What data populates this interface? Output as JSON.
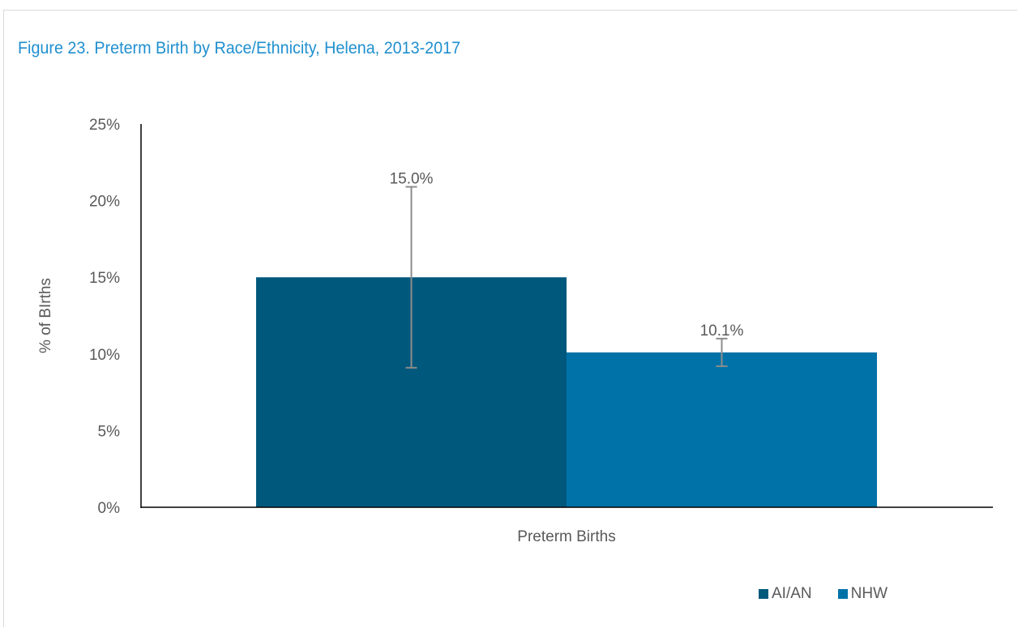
{
  "figure": {
    "title": "Figure 23. Preterm Birth by Race/Ethnicity, Helena, 2013-2017"
  },
  "colors": {
    "title": "#1f8fcf",
    "axis_text": "#595959",
    "error_bar": "#8c8c8c"
  },
  "chart_data": {
    "type": "bar",
    "title": "",
    "categories": [
      "Preterm Births"
    ],
    "xlabel": "",
    "ylabel": "% of BIrths",
    "ylim": [
      0,
      25
    ],
    "yticks": [
      0,
      5,
      10,
      15,
      20,
      25
    ],
    "ytick_labels": [
      "0%",
      "5%",
      "10%",
      "15%",
      "20%",
      "25%"
    ],
    "grid": false,
    "legend_position": "bottom-right",
    "series": [
      {
        "name": "AI/AN",
        "color": "#00587c",
        "values": [
          15.0
        ],
        "value_labels": [
          "15.0%"
        ],
        "error_low": [
          9.1
        ],
        "error_high": [
          20.9
        ]
      },
      {
        "name": "NHW",
        "color": "#0072a8",
        "values": [
          10.1
        ],
        "value_labels": [
          "10.1%"
        ],
        "error_low": [
          9.2
        ],
        "error_high": [
          11.0
        ]
      }
    ]
  }
}
